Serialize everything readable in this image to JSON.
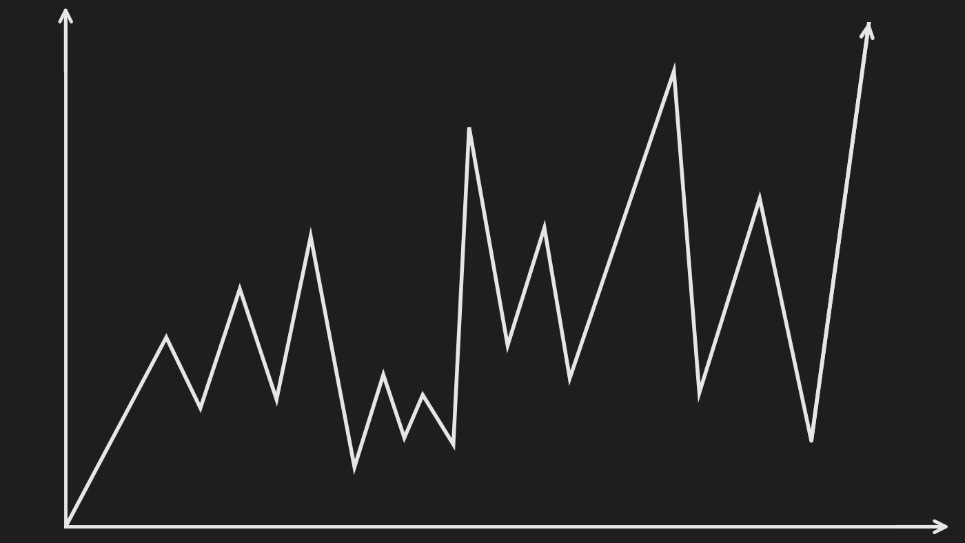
{
  "chart_data": {
    "type": "line",
    "x": [
      0,
      11.5,
      15.4,
      19.9,
      24.1,
      28.0,
      33.0,
      36.3,
      38.7,
      40.8,
      44.3,
      46.1,
      50.5,
      54.7,
      57.6,
      69.5,
      72.4,
      79.3,
      85.2,
      91.8
    ],
    "values": [
      0,
      37.5,
      23.5,
      47.1,
      25.2,
      57.5,
      11.8,
      30.1,
      17.6,
      26.1,
      16.3,
      79.1,
      35.9,
      59.2,
      29.4,
      90.2,
      26.5,
      65.0,
      17.0,
      100
    ],
    "color": "#e6e6e6",
    "xlim": [
      0,
      100
    ],
    "ylim": [
      0,
      100
    ],
    "xticks": [],
    "yticks": [],
    "grid": false,
    "tick_labels": false
  }
}
